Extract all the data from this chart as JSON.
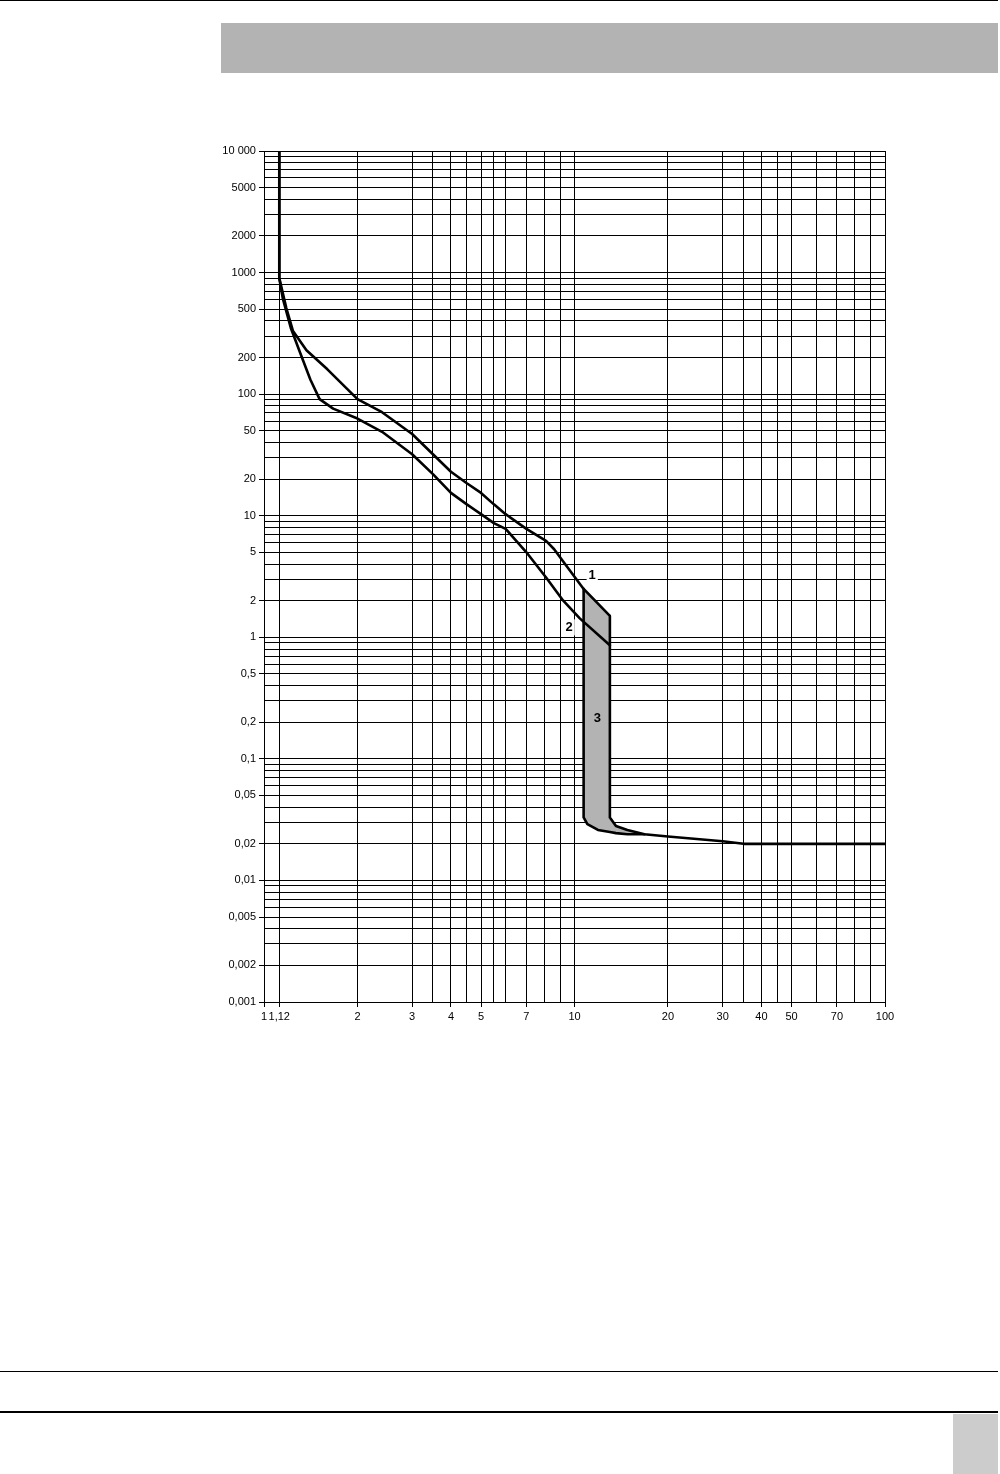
{
  "chart_data": {
    "type": "line",
    "log": "xy",
    "grid": true,
    "xlim": [
      1,
      100
    ],
    "ylim": [
      0.001,
      10000
    ],
    "xticks": [
      1,
      {
        "value": 1.12,
        "label": "1,12"
      },
      2,
      3,
      {
        "value": 3.5,
        "label": null
      },
      4,
      {
        "value": 4.5,
        "label": null
      },
      5,
      {
        "value": 5.5,
        "label": null
      },
      {
        "value": 6,
        "label": null
      },
      7,
      {
        "value": 8,
        "label": null
      },
      {
        "value": 9,
        "label": null
      },
      10,
      20,
      30,
      {
        "value": 35,
        "label": null
      },
      40,
      {
        "value": 45,
        "label": null
      },
      50,
      {
        "value": 60,
        "label": null
      },
      70,
      {
        "value": 80,
        "label": null
      },
      {
        "value": 90,
        "label": null
      },
      100
    ],
    "yticks": [
      {
        "value": 0.001,
        "label": "0,001"
      },
      {
        "value": 0.002,
        "label": "0,002"
      },
      {
        "value": 0.003,
        "label": null
      },
      {
        "value": 0.004,
        "label": null
      },
      {
        "value": 0.005,
        "label": "0,005"
      },
      {
        "value": 0.006,
        "label": null
      },
      {
        "value": 0.007,
        "label": null
      },
      {
        "value": 0.008,
        "label": null
      },
      {
        "value": 0.009,
        "label": null
      },
      {
        "value": 0.01,
        "label": "0,01"
      },
      {
        "value": 0.02,
        "label": "0,02"
      },
      {
        "value": 0.03,
        "label": null
      },
      {
        "value": 0.04,
        "label": null
      },
      {
        "value": 0.05,
        "label": "0,05"
      },
      {
        "value": 0.06,
        "label": null
      },
      {
        "value": 0.07,
        "label": null
      },
      {
        "value": 0.08,
        "label": null
      },
      {
        "value": 0.09,
        "label": null
      },
      {
        "value": 0.1,
        "label": "0,1"
      },
      {
        "value": 0.2,
        "label": "0,2"
      },
      {
        "value": 0.3,
        "label": null
      },
      {
        "value": 0.4,
        "label": null
      },
      {
        "value": 0.5,
        "label": "0,5"
      },
      {
        "value": 0.6,
        "label": null
      },
      {
        "value": 0.7,
        "label": null
      },
      {
        "value": 0.8,
        "label": null
      },
      {
        "value": 0.9,
        "label": null
      },
      1,
      2,
      {
        "value": 3,
        "label": null
      },
      {
        "value": 4,
        "label": null
      },
      5,
      {
        "value": 6,
        "label": null
      },
      {
        "value": 7,
        "label": null
      },
      {
        "value": 8,
        "label": null
      },
      {
        "value": 9,
        "label": null
      },
      10,
      20,
      {
        "value": 30,
        "label": null
      },
      {
        "value": 40,
        "label": null
      },
      50,
      {
        "value": 60,
        "label": null
      },
      {
        "value": 70,
        "label": null
      },
      {
        "value": 80,
        "label": null
      },
      {
        "value": 90,
        "label": null
      },
      100,
      200,
      {
        "value": 300,
        "label": null
      },
      {
        "value": 400,
        "label": null
      },
      500,
      {
        "value": 600,
        "label": null
      },
      {
        "value": 700,
        "label": null
      },
      {
        "value": 800,
        "label": null
      },
      {
        "value": 900,
        "label": null
      },
      1000,
      2000,
      {
        "value": 3000,
        "label": null
      },
      {
        "value": 4000,
        "label": null
      },
      5000,
      {
        "value": 6000,
        "label": null
      },
      {
        "value": 7000,
        "label": null
      },
      {
        "value": 8000,
        "label": null
      },
      {
        "value": 9000,
        "label": null
      },
      {
        "value": 10000,
        "label": "10 000"
      }
    ],
    "series": [
      {
        "name": "1",
        "type": "line",
        "color": "#000000",
        "x": [
          1.12,
          1.12,
          1.18,
          1.24,
          1.37,
          1.6,
          2,
          2.4,
          3,
          3.5,
          4,
          4.5,
          5,
          5.5,
          6,
          7,
          8.1,
          8.6,
          9.4,
          10.7,
          13,
          13,
          13.6,
          14.8,
          16.8,
          20,
          30,
          35,
          100
        ],
        "values": [
          10000,
          900,
          510,
          330,
          230,
          160,
          91,
          71,
          47,
          32,
          23,
          18.5,
          15.4,
          12.4,
          10.3,
          7.8,
          6.2,
          5.3,
          3.9,
          2.5,
          1.5,
          0.033,
          0.028,
          0.026,
          0.024,
          0.023,
          0.021,
          0.02,
          0.02
        ]
      },
      {
        "name": "2",
        "type": "line",
        "color": "#000000",
        "x": [
          1.12,
          1.12,
          1.15,
          1.22,
          1.31,
          1.41,
          1.51,
          1.67,
          2,
          2.4,
          3,
          3.5,
          4,
          4.5,
          5,
          5.5,
          6,
          7,
          8.1,
          9.2,
          10.4,
          13
        ],
        "values": [
          10000,
          900,
          610,
          350,
          216,
          132,
          91,
          76,
          63,
          49,
          32,
          22,
          15.4,
          12.4,
          10.3,
          8.7,
          7.8,
          5,
          3.1,
          2,
          1.43,
          0.86
        ]
      },
      {
        "name": "3",
        "type": "line",
        "color": "#000000",
        "x": [
          10.7,
          10.7,
          11,
          11.9,
          13,
          13,
          13.6,
          14.8,
          16.8
        ],
        "values": [
          2.5,
          0.033,
          0.029,
          0.026,
          0.025,
          0.025,
          0.0245,
          0.024,
          0.024
        ],
        "lower": [
          2.5,
          0.033,
          0.029,
          0.026,
          0.025,
          0.025,
          0.0245,
          0.024,
          0.024
        ],
        "upper": [
          2.5,
          2.5,
          2.3,
          1.9,
          1.5,
          0.033,
          0.028,
          0.026,
          0.024
        ]
      }
    ]
  }
}
